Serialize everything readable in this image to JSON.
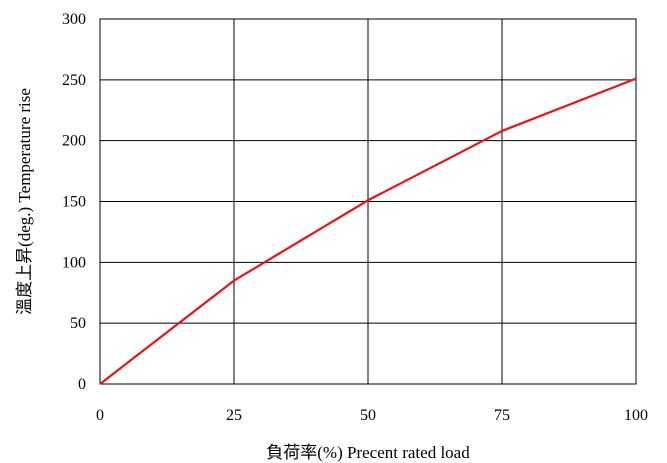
{
  "chart_data": {
    "type": "line",
    "title": "",
    "xlabel": "負荷率(%) Precent rated load",
    "ylabel": "溫度上昇(deg.) Temperature rise",
    "x": [
      0,
      25,
      50,
      75,
      100
    ],
    "series": [
      {
        "values": [
          0,
          85,
          151,
          208,
          251
        ],
        "color": "#ee1111"
      }
    ],
    "xlim": [
      0,
      100
    ],
    "ylim": [
      0,
      300
    ],
    "x_ticks": [
      "0",
      "25",
      "50",
      "75",
      "100"
    ],
    "y_ticks": [
      "0",
      "50",
      "100",
      "150",
      "200",
      "250",
      "300"
    ],
    "grid": true,
    "legend": "none"
  }
}
